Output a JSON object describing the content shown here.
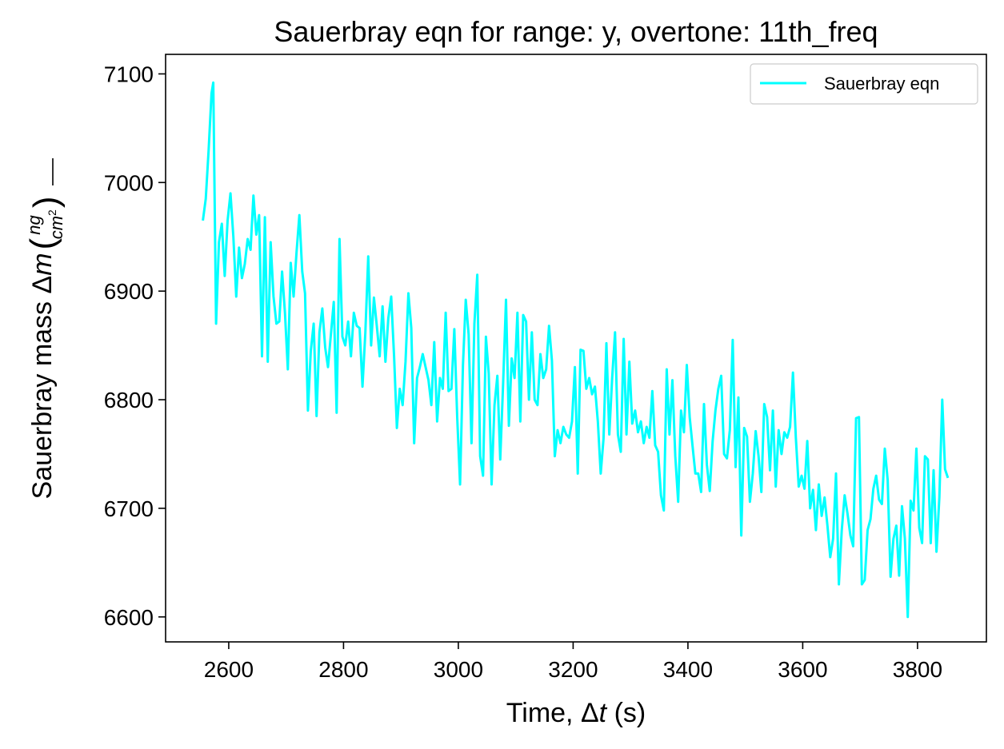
{
  "chart_data": {
    "type": "line",
    "title": "Sauerbray eqn for range: y, overtone: 11th_freq",
    "xlabel": {
      "pre": "Time, ",
      "delta": "Δ",
      "var": "t",
      "post": " (s)"
    },
    "ylabel": {
      "pre": "Sauerbray mass ",
      "delta": "Δ",
      "var": "m",
      "open": "(",
      "num": "ng",
      "den_base": "cm",
      "den_exp": "2",
      "close": ")"
    },
    "xlim": [
      2490,
      3920
    ],
    "ylim": [
      6577,
      7118
    ],
    "xticks": [
      2600,
      2800,
      3000,
      3200,
      3400,
      3600,
      3800
    ],
    "yticks": [
      6600,
      6700,
      6800,
      6900,
      7000,
      7100
    ],
    "grid": false,
    "legend": {
      "position": "top-right",
      "entries": [
        "Sauerbray eqn"
      ]
    },
    "series": [
      {
        "name": "Sauerbray eqn",
        "color": "#00ffff",
        "x": [
          2555,
          2560,
          2565,
          2570,
          2573,
          2578,
          2583,
          2588,
          2593,
          2598,
          2603,
          2608,
          2613,
          2618,
          2623,
          2628,
          2633,
          2638,
          2643,
          2648,
          2653,
          2658,
          2663,
          2668,
          2673,
          2678,
          2683,
          2688,
          2693,
          2698,
          2703,
          2708,
          2713,
          2718,
          2723,
          2728,
          2733,
          2738,
          2743,
          2748,
          2753,
          2758,
          2763,
          2768,
          2773,
          2778,
          2783,
          2788,
          2793,
          2798,
          2803,
          2808,
          2813,
          2818,
          2823,
          2828,
          2833,
          2838,
          2843,
          2848,
          2853,
          2858,
          2863,
          2868,
          2873,
          2878,
          2883,
          2888,
          2893,
          2898,
          2903,
          2908,
          2913,
          2918,
          2923,
          2928,
          2933,
          2938,
          2943,
          2948,
          2953,
          2958,
          2963,
          2968,
          2973,
          2978,
          2983,
          2988,
          2993,
          2998,
          3003,
          3008,
          3013,
          3018,
          3023,
          3028,
          3033,
          3038,
          3043,
          3048,
          3053,
          3058,
          3063,
          3068,
          3073,
          3078,
          3083,
          3088,
          3093,
          3098,
          3103,
          3108,
          3113,
          3118,
          3123,
          3128,
          3133,
          3138,
          3143,
          3148,
          3153,
          3158,
          3163,
          3168,
          3173,
          3178,
          3183,
          3188,
          3193,
          3198,
          3203,
          3208,
          3213,
          3218,
          3223,
          3228,
          3233,
          3238,
          3243,
          3248,
          3253,
          3258,
          3263,
          3268,
          3273,
          3278,
          3283,
          3288,
          3293,
          3298,
          3303,
          3308,
          3313,
          3318,
          3323,
          3328,
          3333,
          3338,
          3343,
          3348,
          3353,
          3358,
          3363,
          3368,
          3373,
          3378,
          3383,
          3388,
          3393,
          3398,
          3403,
          3408,
          3413,
          3418,
          3423,
          3428,
          3433,
          3438,
          3443,
          3448,
          3453,
          3458,
          3463,
          3468,
          3473,
          3478,
          3483,
          3488,
          3493,
          3498,
          3503,
          3508,
          3513,
          3518,
          3523,
          3528,
          3533,
          3538,
          3543,
          3548,
          3553,
          3558,
          3563,
          3568,
          3573,
          3578,
          3583,
          3588,
          3593,
          3598,
          3603,
          3608,
          3613,
          3618,
          3623,
          3628,
          3633,
          3638,
          3643,
          3648,
          3653,
          3658,
          3663,
          3668,
          3673,
          3678,
          3683,
          3688,
          3693,
          3698,
          3703,
          3708,
          3713,
          3718,
          3723,
          3728,
          3733,
          3738,
          3743,
          3748,
          3753,
          3758,
          3763,
          3768,
          3773,
          3778,
          3783,
          3788,
          3793,
          3798,
          3803,
          3808,
          3813,
          3818,
          3823,
          3828,
          3833,
          3838,
          3843,
          3848,
          3853
        ],
        "y": [
          6965,
          6985,
          7030,
          7082,
          7092,
          6870,
          6945,
          6962,
          6914,
          6965,
          6990,
          6950,
          6895,
          6940,
          6912,
          6925,
          6948,
          6938,
          6988,
          6952,
          6970,
          6840,
          6968,
          6835,
          6945,
          6895,
          6870,
          6872,
          6918,
          6880,
          6828,
          6926,
          6895,
          6935,
          6970,
          6918,
          6898,
          6790,
          6845,
          6870,
          6785,
          6862,
          6884,
          6848,
          6830,
          6860,
          6890,
          6788,
          6948,
          6858,
          6850,
          6872,
          6840,
          6880,
          6868,
          6866,
          6812,
          6862,
          6932,
          6850,
          6894,
          6868,
          6840,
          6886,
          6835,
          6875,
          6895,
          6840,
          6774,
          6810,
          6795,
          6835,
          6898,
          6866,
          6760,
          6820,
          6830,
          6842,
          6830,
          6818,
          6795,
          6853,
          6780,
          6820,
          6810,
          6880,
          6808,
          6810,
          6865,
          6784,
          6722,
          6832,
          6892,
          6860,
          6760,
          6870,
          6915,
          6748,
          6730,
          6858,
          6824,
          6722,
          6795,
          6822,
          6745,
          6815,
          6892,
          6776,
          6838,
          6820,
          6880,
          6780,
          6878,
          6872,
          6800,
          6862,
          6800,
          6795,
          6842,
          6820,
          6828,
          6868,
          6836,
          6748,
          6772,
          6760,
          6775,
          6768,
          6765,
          6780,
          6830,
          6732,
          6846,
          6845,
          6810,
          6820,
          6805,
          6812,
          6780,
          6732,
          6764,
          6852,
          6768,
          6820,
          6862,
          6768,
          6752,
          6856,
          6768,
          6835,
          6778,
          6790,
          6770,
          6780,
          6760,
          6775,
          6765,
          6808,
          6758,
          6752,
          6712,
          6698,
          6828,
          6768,
          6818,
          6748,
          6706,
          6790,
          6770,
          6832,
          6784,
          6758,
          6732,
          6732,
          6715,
          6796,
          6740,
          6716,
          6762,
          6790,
          6810,
          6822,
          6750,
          6746,
          6772,
          6855,
          6738,
          6802,
          6675,
          6774,
          6766,
          6706,
          6732,
          6771,
          6748,
          6715,
          6796,
          6784,
          6735,
          6790,
          6720,
          6772,
          6750,
          6770,
          6765,
          6775,
          6825,
          6765,
          6720,
          6730,
          6718,
          6762,
          6700,
          6717,
          6680,
          6722,
          6693,
          6710,
          6684,
          6655,
          6672,
          6732,
          6630,
          6680,
          6712,
          6695,
          6675,
          6665,
          6783,
          6784,
          6630,
          6634,
          6680,
          6690,
          6718,
          6730,
          6708,
          6704,
          6755,
          6726,
          6637,
          6672,
          6684,
          6638,
          6702,
          6672,
          6600,
          6707,
          6698,
          6755,
          6682,
          6668,
          6748,
          6745,
          6668,
          6735,
          6660,
          6710,
          6800,
          6736,
          6728
        ]
      }
    ]
  }
}
